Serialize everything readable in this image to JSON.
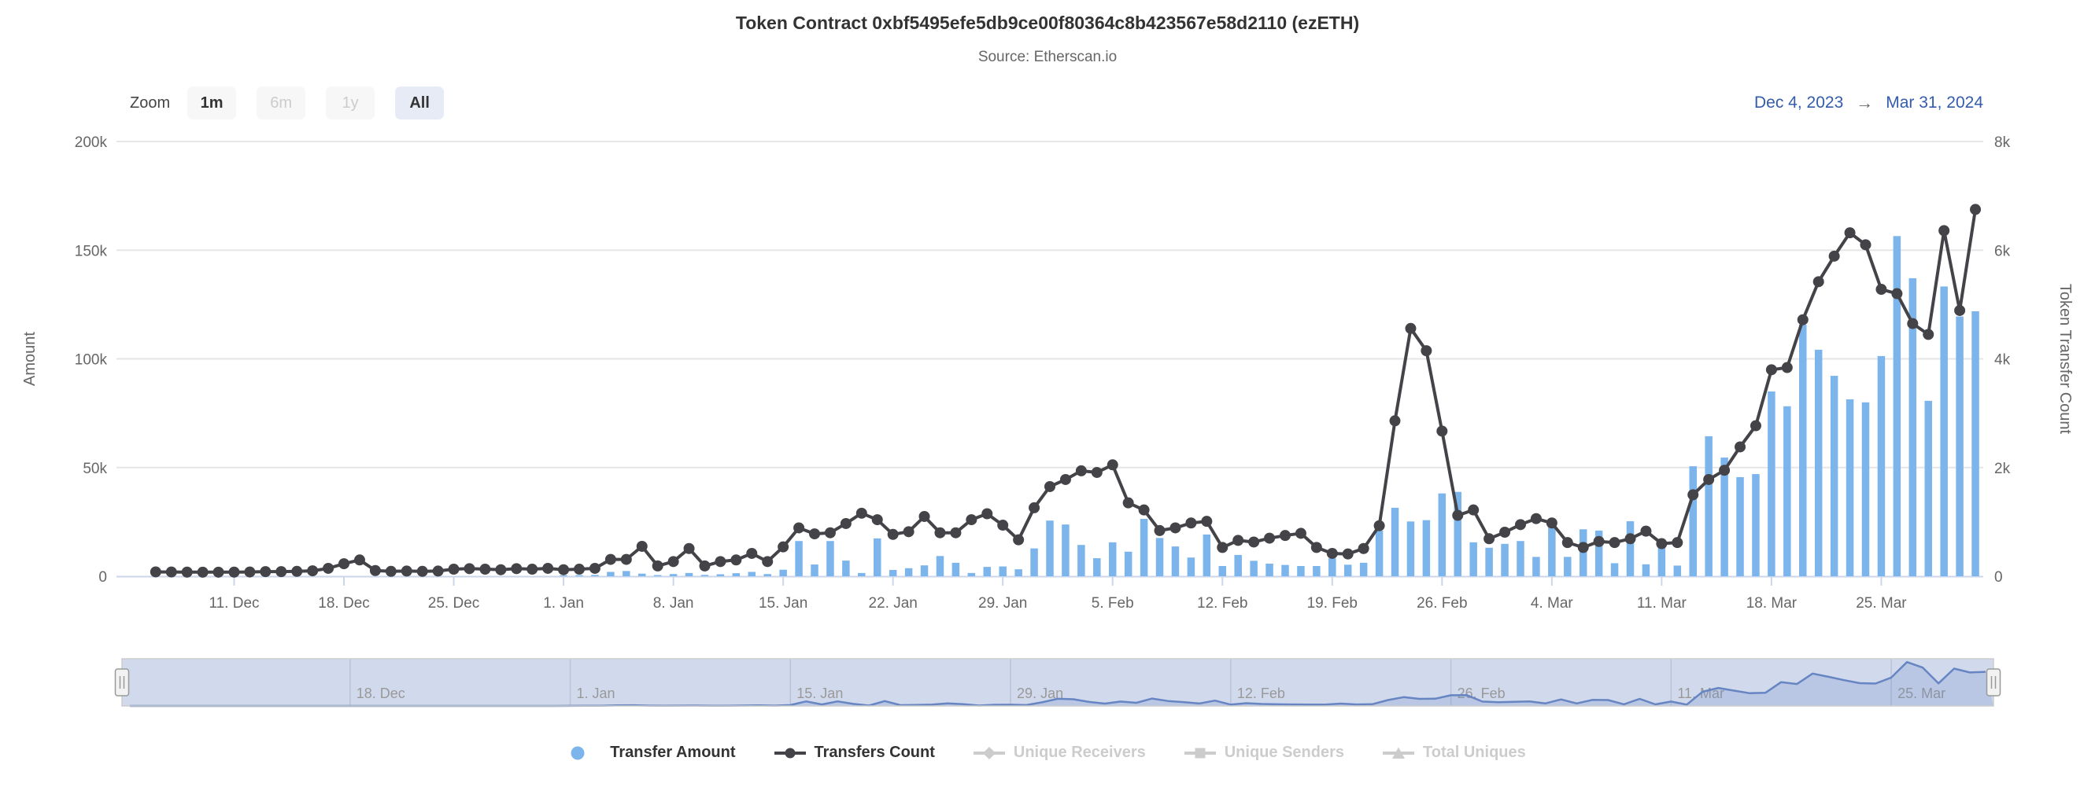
{
  "header": {
    "title": "Token Contract 0xbf5495efe5db9ce00f80364c8b423567e58d2110 (ezETH)",
    "subtitle": "Source: Etherscan.io"
  },
  "range_selector": {
    "zoom_label": "Zoom",
    "buttons": [
      {
        "label": "1m",
        "state": "normal"
      },
      {
        "label": "6m",
        "state": "disabled"
      },
      {
        "label": "1y",
        "state": "disabled"
      },
      {
        "label": "All",
        "state": "selected"
      }
    ],
    "from_date": "Dec 4, 2023",
    "arrow": "→",
    "to_date": "Mar 31, 2024"
  },
  "chart_data": {
    "type": "combo",
    "title": "Token Contract 0xbf5495efe5db9ce00f80364c8b423567e58d2110 (ezETH)",
    "subtitle": "Source: Etherscan.io",
    "grid": true,
    "legend_position": "bottom",
    "x": {
      "unit": "day",
      "start": "Dec 4, 2023",
      "end": "Mar 31, 2024",
      "tick_labels": [
        "11. Dec",
        "18. Dec",
        "25. Dec",
        "1. Jan",
        "8. Jan",
        "15. Jan",
        "22. Jan",
        "29. Jan",
        "5. Feb",
        "12. Feb",
        "19. Feb",
        "26. Feb",
        "4. Mar",
        "11. Mar",
        "18. Mar",
        "25. Mar"
      ],
      "tick_indices": [
        7,
        14,
        21,
        28,
        35,
        42,
        49,
        56,
        63,
        70,
        77,
        84,
        91,
        98,
        105,
        112
      ]
    },
    "left_axis": {
      "title": "Amount",
      "range": [
        0,
        200000
      ],
      "tick_values": [
        0,
        50000,
        100000,
        150000,
        200000
      ],
      "tick_labels": [
        "0",
        "50k",
        "100k",
        "150k",
        "200k"
      ]
    },
    "right_axis": {
      "title": "Token Transfer Count",
      "range": [
        0,
        8000
      ],
      "tick_values": [
        0,
        2000,
        4000,
        6000,
        8000
      ],
      "tick_labels": [
        "0",
        "2k",
        "4k",
        "6k",
        "8k"
      ]
    },
    "series": [
      {
        "name": "Transfer Amount",
        "type": "bar",
        "axis": "left",
        "color": "#7cb5ec",
        "values": [
          0,
          0,
          0,
          0,
          0,
          0,
          0,
          0,
          0,
          0,
          0,
          0,
          0,
          0,
          0,
          0,
          0,
          0,
          0,
          0,
          0,
          0,
          0,
          0,
          0,
          0,
          0,
          0,
          400,
          500,
          600,
          2000,
          2400,
          1200,
          500,
          1000,
          1500,
          600,
          900,
          1400,
          2000,
          1000,
          3000,
          16200,
          5400,
          16200,
          7200,
          1500,
          17400,
          2900,
          3700,
          5000,
          9300,
          6200,
          1500,
          4300,
          4500,
          3200,
          12800,
          25600,
          23800,
          14400,
          8300,
          15600,
          11300,
          26400,
          17600,
          13700,
          8600,
          19200,
          4700,
          9800,
          7100,
          5800,
          5200,
          4700,
          4700,
          8300,
          5300,
          6200,
          21000,
          31500,
          25200,
          25800,
          38100,
          38800,
          15600,
          13100,
          14900,
          16200,
          8900,
          23400,
          8900,
          21600,
          21000,
          6000,
          25300,
          5500,
          15600,
          4900,
          50600,
          64400,
          54600,
          45600,
          47000,
          85000,
          78200,
          115700,
          104200,
          92200,
          81400,
          80000,
          101300,
          156500,
          137100,
          80700,
          133300,
          119500,
          121900
        ]
      },
      {
        "name": "Transfers Count",
        "type": "line",
        "axis": "right",
        "color": "#434348",
        "values": [
          null,
          null,
          80,
          78,
          76,
          75,
          75,
          76,
          78,
          85,
          85,
          90,
          100,
          145,
          230,
          300,
          105,
          90,
          95,
          90,
          95,
          130,
          140,
          130,
          120,
          140,
          130,
          145,
          120,
          130,
          145,
          310,
          310,
          550,
          190,
          270,
          510,
          190,
          270,
          300,
          420,
          270,
          540,
          890,
          780,
          800,
          970,
          1160,
          1040,
          770,
          820,
          1100,
          800,
          800,
          1040,
          1150,
          940,
          670,
          1260,
          1650,
          1780,
          1940,
          1910,
          2050,
          1350,
          1220,
          840,
          890,
          980,
          1010,
          530,
          660,
          630,
          700,
          750,
          790,
          530,
          420,
          410,
          510,
          930,
          2860,
          4560,
          4150,
          2670,
          1120,
          1220,
          690,
          810,
          950,
          1060,
          980,
          620,
          530,
          640,
          620,
          690,
          830,
          600,
          620,
          1500,
          1780,
          1950,
          2380,
          2770,
          3800,
          3840,
          4720,
          5420,
          5890,
          6320,
          6100,
          5280,
          5200,
          4650,
          4450,
          6360,
          4890,
          6750
        ]
      }
    ]
  },
  "navigator": {
    "tick_labels": [
      "18. Dec",
      "1. Jan",
      "15. Jan",
      "29. Jan",
      "12. Feb",
      "26. Feb",
      "11. Mar",
      "25. Mar"
    ],
    "tick_indices": [
      14,
      28,
      42,
      56,
      70,
      84,
      98,
      112
    ],
    "range_max": 160000
  },
  "legend": {
    "items": [
      {
        "label": "Transfer Amount",
        "marker": "circle",
        "color": "#7cb5ec",
        "enabled": true
      },
      {
        "label": "Transfers Count",
        "marker": "line-dot",
        "color": "#434348",
        "enabled": true
      },
      {
        "label": "Unique Receivers",
        "marker": "line-diamond",
        "color": "#cccccc",
        "enabled": false
      },
      {
        "label": "Unique Senders",
        "marker": "line-square",
        "color": "#cccccc",
        "enabled": false
      },
      {
        "label": "Total Uniques",
        "marker": "line-triangle",
        "color": "#cccccc",
        "enabled": false
      }
    ]
  },
  "colors": {
    "bar": "#7cb5ec",
    "line": "#434348",
    "grid": "#e6e6e6",
    "axis_label": "#666666",
    "axis_title": "#666666",
    "title_text": "#333333",
    "subtitle_text": "#666666",
    "tick_mark": "#ccd6eb",
    "x_label": "#666666",
    "range_text": "#335cad",
    "button_bg": "#f7f7f7",
    "button_selected_bg": "#e6ebf5",
    "disabled_text": "#cccccc",
    "navigator_mask": "rgba(102,133,194,0.3)",
    "navigator_fill": "rgba(102,133,194,0.22)",
    "navigator_line": "#6685c2",
    "navigator_gridline": "rgba(80,90,110,0.18)",
    "navigator_label": "#999999",
    "navigator_outline": "#cccccc",
    "handle_fill": "#f2f2f2",
    "handle_stroke": "#999999"
  }
}
